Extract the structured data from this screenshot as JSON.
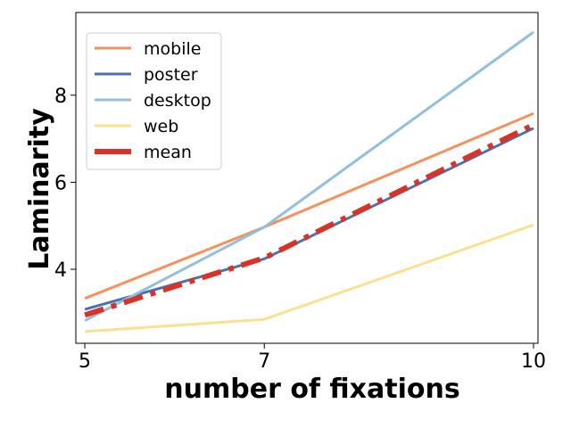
{
  "chart_data": {
    "type": "line",
    "xlabel": "number of fixations",
    "ylabel": "Laminarity",
    "x": [
      5,
      7,
      10
    ],
    "x_ticks": [
      "5",
      "7",
      "10"
    ],
    "y_ticks": [
      "4",
      "6",
      "8"
    ],
    "xlim": [
      4.9,
      10.05
    ],
    "ylim": [
      2.3,
      9.9
    ],
    "grid": false,
    "legend_position": "top-left",
    "series": [
      {
        "name": "mobile",
        "values": [
          3.33,
          4.97,
          7.58
        ],
        "color": "#f4915c",
        "style": "solid",
        "emphasis": false
      },
      {
        "name": "poster",
        "values": [
          3.08,
          4.24,
          7.24
        ],
        "color": "#4a72b2",
        "style": "solid",
        "emphasis": false
      },
      {
        "name": "desktop",
        "values": [
          2.82,
          4.97,
          9.45
        ],
        "color": "#92c0dc",
        "style": "solid",
        "emphasis": false
      },
      {
        "name": "web",
        "values": [
          2.57,
          2.85,
          5.02
        ],
        "color": "#fde08d",
        "style": "solid",
        "emphasis": false
      },
      {
        "name": "mean",
        "values": [
          2.95,
          4.26,
          7.32
        ],
        "color": "#d73328",
        "style": "dashdot",
        "emphasis": true
      }
    ]
  }
}
